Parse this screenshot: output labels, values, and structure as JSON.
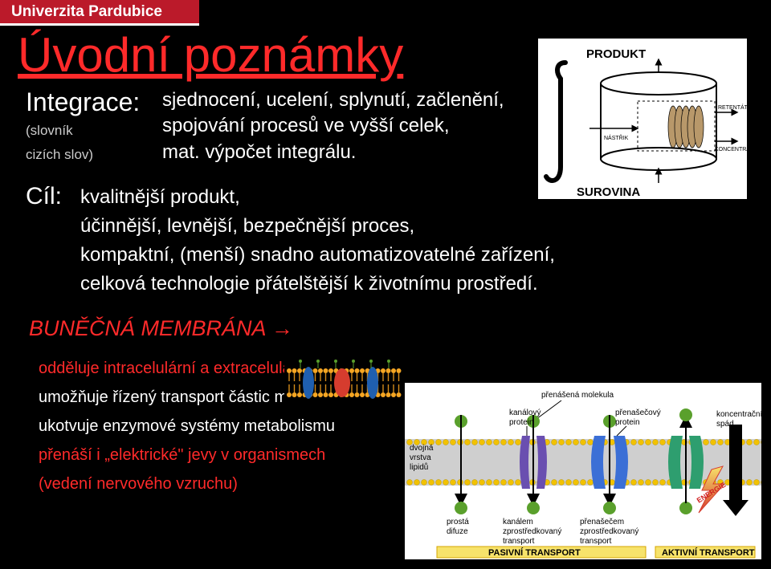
{
  "header": {
    "uni": "Univerzita Pardubice"
  },
  "title": "Úvodní poznámky",
  "definition": {
    "label": "Integrace:",
    "sublabel1": "(slovník",
    "sublabel2": "cizích slov)",
    "line1": "sjednocení, ucelení, splynutí, začlenění,",
    "line2": "spojování procesů ve vyšší celek,",
    "line3": "mat. výpočet integrálu."
  },
  "goal": {
    "label": "Cíl:",
    "line1": "kvalitnější produkt,",
    "line2": "účinnější, levnější, bezpečnější proces,",
    "line3": "kompaktní, (menší) snadno automatizovatelné zařízení,",
    "line4": "celková technologie přátelštější k životnímu prostředí."
  },
  "membrane": {
    "heading": "BUNĚČNÁ MEMBRÁNA →",
    "item1": "odděluje intracelulární a extracelulární prostor",
    "item2": "umožňuje řízený transport částic molekul a iontů",
    "item3": "ukotvuje enzymové systémy metabolismu",
    "item4a": "přenáší i „elektrické\" jevy v organismech",
    "item4b": "(vedení nervového vzruchu)"
  },
  "prod_diagram": {
    "type": "schematic",
    "label_top": "PRODUKT",
    "label_bottom": "SUROVINA",
    "label_nastrik": "NÁSTŘIK",
    "label_retentat": "RETENTÁT",
    "label_koncentrat": "KONCENTRÁT",
    "colors": {
      "bg": "#ffffff",
      "stroke": "#000000",
      "membrane_fill": "#b8986a",
      "text": "#000000"
    },
    "integral_stroke_width": 6,
    "text_fontsize": 15,
    "small_fontsize": 7
  },
  "membrane_illustration": {
    "type": "bilayer-cartoon",
    "colors": {
      "head": "#f5a623",
      "tail": "#d48b1a",
      "protein_blue": "#1f5fb0",
      "protein_red": "#d63c2e",
      "carb": "#5aa02c"
    },
    "n_lipids": 22
  },
  "transport_diagram": {
    "type": "membrane-transport-schematic",
    "title_top": "přenášená molekula",
    "labels": {
      "lipid": "dvojná\nvrstva\nlipidů",
      "kanal_protein": "kanálový\nprotein",
      "prenasec_protein": "přenašečový\nprotein",
      "prosta_difuze": "prostá\ndifuze",
      "kanal_transport": "kanálem\nzprostředkovaný\ntransport",
      "prenasec_transport": "přenašečem\nzprostředkovaný\ntransport",
      "konc_spad": "koncentrační\nspád",
      "energie": "ENERGIE",
      "pasivni": "PASIVNÍ TRANSPORT",
      "aktivni": "AKTIVNÍ TRANSPORT"
    },
    "colors": {
      "bg": "#ffffff",
      "lipid_band": "#cfcfcf",
      "lipid_head": "#f2c200",
      "molecule": "#5aa02c",
      "protein_purple": "#6a4fb0",
      "protein_blue": "#3b6fd6",
      "protein_red": "#d63c2e",
      "protein_green": "#2e9e6f",
      "arrow": "#000000",
      "text": "#000000",
      "highlight_box": "#f7e36b",
      "highlight_border": "#d4a400",
      "red_text": "#d02020",
      "energy_gradient_top": "#f7e36b",
      "energy_gradient_bottom": "#d63c2e"
    },
    "fontsize_label": 10,
    "fontsize_footer": 11
  }
}
